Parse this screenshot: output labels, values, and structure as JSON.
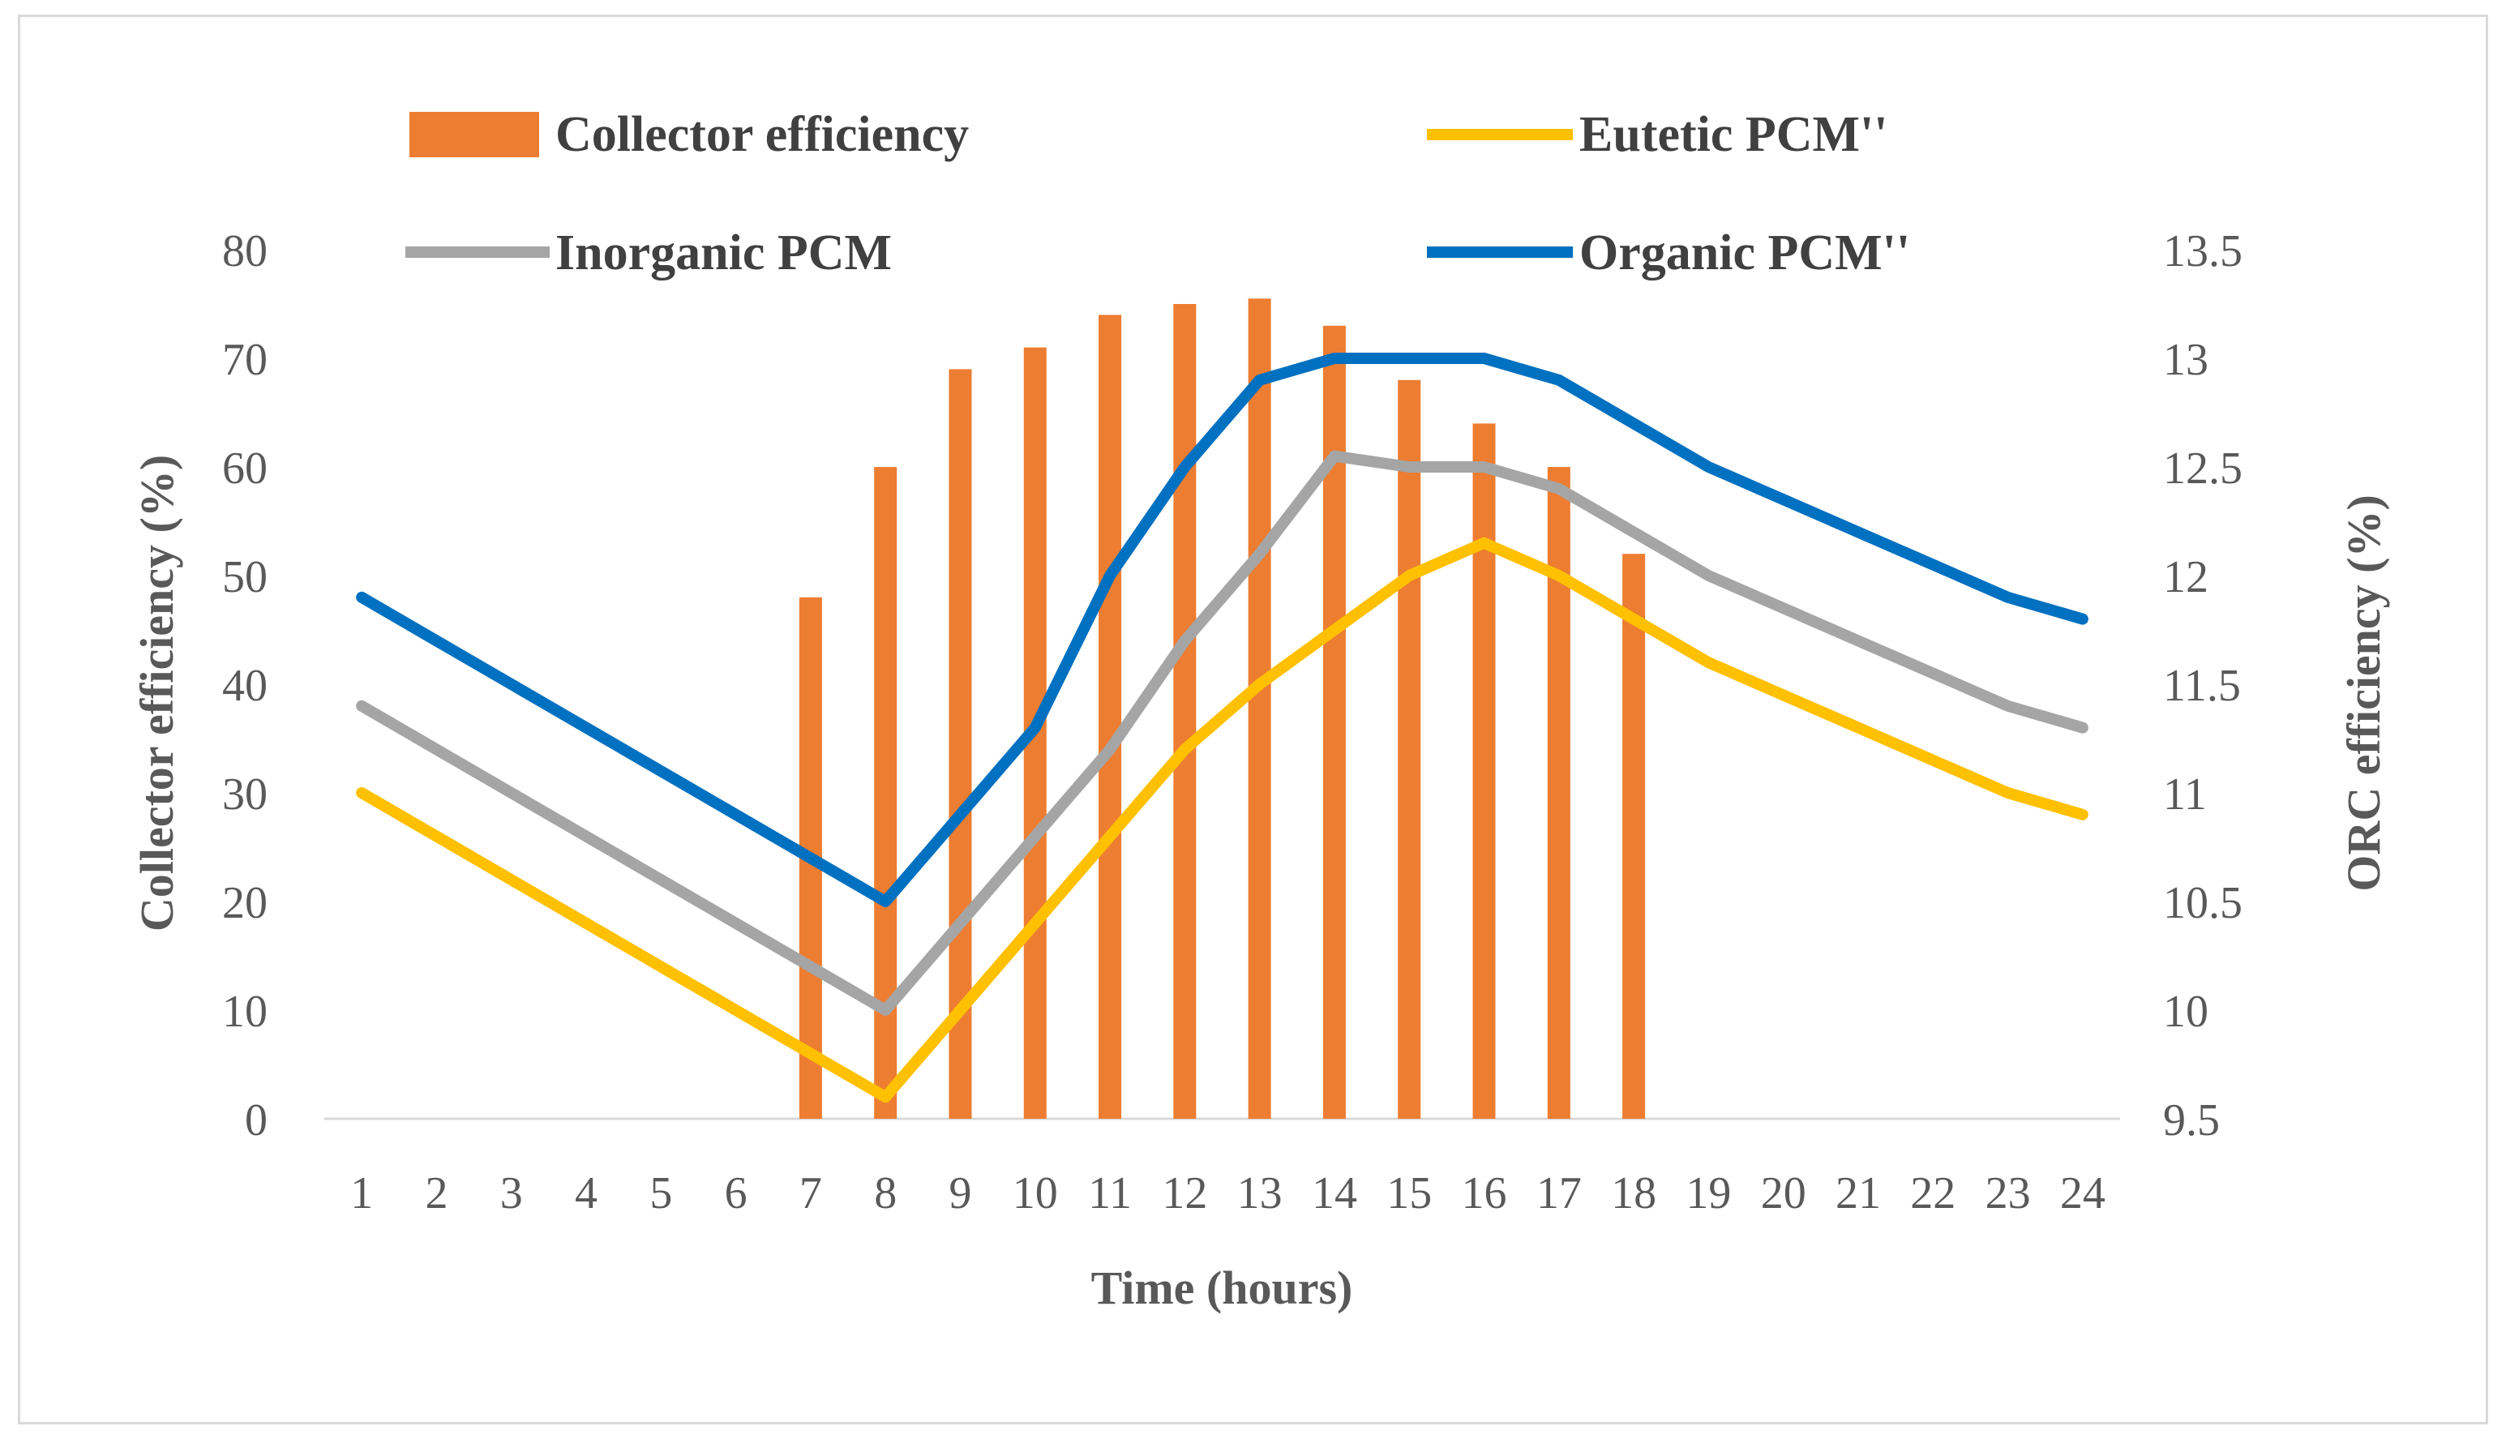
{
  "chart_data": {
    "type": "bar+line",
    "title": "",
    "categories": [
      "1",
      "2",
      "3",
      "4",
      "5",
      "6",
      "7",
      "8",
      "9",
      "10",
      "11",
      "12",
      "13",
      "14",
      "15",
      "16",
      "17",
      "18",
      "19",
      "20",
      "21",
      "22",
      "23",
      "24"
    ],
    "xlabel": "Time (hours)",
    "ylabel_left": "Collector efficiency (%)",
    "ylabel_right": "ORC efficiency (%)",
    "ylim_left": [
      0,
      80
    ],
    "ylim_right": [
      9.5,
      13.5
    ],
    "yticks_left": [
      "0",
      "10",
      "20",
      "30",
      "40",
      "50",
      "60",
      "70",
      "80"
    ],
    "yticks_right": [
      "9.5",
      "10",
      "10.5",
      "11",
      "11.5",
      "12",
      "12.5",
      "13",
      "13.5"
    ],
    "legend_position": "top",
    "bars": {
      "name": "Collector efficiency",
      "axis": "left",
      "color": "#ED7D31",
      "values": [
        0,
        0,
        0,
        0,
        0,
        0,
        48,
        60,
        69,
        71,
        74,
        75,
        75.5,
        73,
        68,
        64,
        60,
        52,
        0,
        0,
        0,
        0,
        0,
        0
      ]
    },
    "series": [
      {
        "name": "Eutetic PCM''",
        "axis": "right",
        "color": "#FFC000",
        "values": [
          11.0,
          10.8,
          10.6,
          10.4,
          10.2,
          10.0,
          9.8,
          9.6,
          10.0,
          10.4,
          10.8,
          11.2,
          11.5,
          11.75,
          12.0,
          12.15,
          12.0,
          11.8,
          11.6,
          11.45,
          11.3,
          11.15,
          11.0,
          10.9
        ]
      },
      {
        "name": "Inorganic PCM",
        "axis": "right",
        "color": "#A5A5A5",
        "values": [
          11.4,
          11.2,
          11.0,
          10.8,
          10.6,
          10.4,
          10.2,
          10.0,
          10.4,
          10.8,
          11.2,
          11.7,
          12.1,
          12.55,
          12.5,
          12.5,
          12.4,
          12.2,
          12.0,
          11.85,
          11.7,
          11.55,
          11.4,
          11.3
        ]
      },
      {
        "name": "Organic PCM''",
        "axis": "right",
        "color": "#0070C0",
        "values": [
          11.9,
          11.7,
          11.5,
          11.3,
          11.1,
          10.9,
          10.7,
          10.5,
          10.9,
          11.3,
          12.0,
          12.5,
          12.9,
          13.0,
          13.0,
          13.0,
          12.9,
          12.7,
          12.5,
          12.35,
          12.2,
          12.05,
          11.9,
          11.8
        ]
      }
    ],
    "legend": [
      {
        "label": "Collector efficiency",
        "kind": "bar",
        "color": "#ED7D31"
      },
      {
        "label": "Eutetic PCM''",
        "kind": "line",
        "color": "#FFC000"
      },
      {
        "label": "Inorganic PCM",
        "kind": "line",
        "color": "#A5A5A5"
      },
      {
        "label": "Organic PCM''",
        "kind": "line",
        "color": "#0070C0"
      }
    ]
  }
}
